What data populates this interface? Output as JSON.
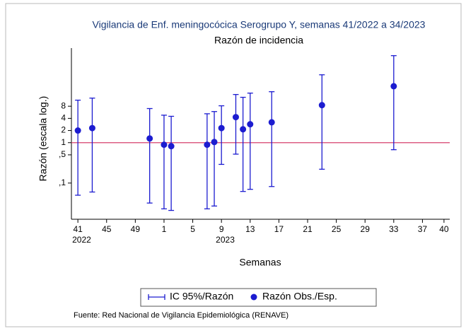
{
  "chart_data": {
    "type": "errorbar",
    "title": "Vigilancia de Enf. meningocócica Serogrupo Y, semanas 41/2022 a 34/2023",
    "subtitle": "Razón de incidencia",
    "y_label": "Razón (escala log.)",
    "x_label": "Semanas",
    "source": "Fuente: Red Nacional de Vigilancia Epidemiológica (RENAVE)",
    "log_y": true,
    "legend": "bottom",
    "reference_line": 1,
    "reference_color": "#d6406e",
    "x": [
      0,
      2,
      10,
      12,
      13,
      18,
      19,
      20,
      22,
      23,
      24,
      27,
      34,
      44
    ],
    "series": [
      {
        "name": "Razón Obs./Esp.",
        "color": "#1c1cd0",
        "values": [
          2.0,
          2.3,
          1.27,
          0.89,
          0.82,
          0.89,
          1.04,
          2.3,
          4.3,
          2.15,
          2.86,
          3.2,
          8.5,
          25
        ]
      }
    ],
    "ci": {
      "name": "IC 95%/Razón",
      "color": "#1c1cd0",
      "lower": [
        0.05,
        0.06,
        0.032,
        0.023,
        0.021,
        0.023,
        0.027,
        0.29,
        0.52,
        0.062,
        0.07,
        0.082,
        0.22,
        0.67
      ],
      "upper": [
        11.3,
        12.7,
        7,
        4.8,
        4.5,
        5.2,
        5.9,
        8.2,
        15.6,
        13.3,
        16.9,
        18.3,
        48,
        143
      ]
    },
    "xlim": [
      -0.9,
      51.8
    ],
    "ylim": [
      0.0127,
      220
    ],
    "xticks": [
      {
        "value": 0,
        "label": "41"
      },
      {
        "value": 4,
        "label": "45"
      },
      {
        "value": 8,
        "label": "49"
      },
      {
        "value": 12,
        "label": "1"
      },
      {
        "value": 16,
        "label": "5"
      },
      {
        "value": 20,
        "label": "9"
      },
      {
        "value": 24,
        "label": "13"
      },
      {
        "value": 28,
        "label": "17"
      },
      {
        "value": 32,
        "label": "21"
      },
      {
        "value": 36,
        "label": "25"
      },
      {
        "value": 40,
        "label": "29"
      },
      {
        "value": 44,
        "label": "33"
      },
      {
        "value": 48,
        "label": "37"
      },
      {
        "value": 51,
        "label": "40"
      }
    ],
    "xtick_years": [
      {
        "value": 0,
        "label": "2022"
      },
      {
        "value": 20,
        "label": "2023"
      }
    ],
    "yticks": [
      {
        "value": 0.1,
        "label": ",1"
      },
      {
        "value": 0.5,
        "label": ",5"
      },
      1,
      2,
      4,
      8
    ]
  }
}
